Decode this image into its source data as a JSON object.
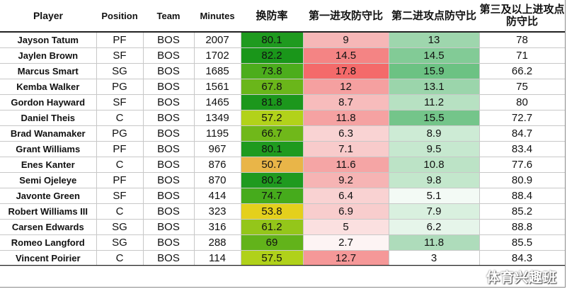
{
  "headers": {
    "player": "Player",
    "position": "Position",
    "team": "Team",
    "minutes": "Minutes",
    "switch_rate": "换防率",
    "first_attack_ratio": "第一进攻防守比",
    "second_attack_ratio": "第二进攻点防守比",
    "third_attack_ratio": "第三及以上进攻点防守比"
  },
  "rows": [
    {
      "player": "Jayson Tatum",
      "position": "PF",
      "team": "BOS",
      "minutes": "2007",
      "switch_rate": "80.1",
      "first": "9",
      "second": "13",
      "third": "78",
      "colors": {
        "switch": "#1f9a1f",
        "first": "#f6b7b7",
        "second": "#9ed6ad"
      }
    },
    {
      "player": "Jaylen Brown",
      "position": "SF",
      "team": "BOS",
      "minutes": "1702",
      "switch_rate": "82.2",
      "first": "14.5",
      "second": "14.5",
      "third": "71",
      "colors": {
        "switch": "#1a961a",
        "first": "#f48484",
        "second": "#82cb96"
      }
    },
    {
      "player": "Marcus Smart",
      "position": "SG",
      "team": "BOS",
      "minutes": "1685",
      "switch_rate": "73.8",
      "first": "17.8",
      "second": "15.9",
      "third": "66.2",
      "colors": {
        "switch": "#4cad1c",
        "first": "#f46a6a",
        "second": "#6cc283"
      }
    },
    {
      "player": "Kemba Walker",
      "position": "PG",
      "team": "BOS",
      "minutes": "1561",
      "switch_rate": "67.8",
      "first": "12",
      "second": "13.1",
      "third": "75",
      "colors": {
        "switch": "#6ab61a",
        "first": "#f5a0a0",
        "second": "#9bd5ab"
      }
    },
    {
      "player": "Gordon Hayward",
      "position": "SF",
      "team": "BOS",
      "minutes": "1465",
      "switch_rate": "81.8",
      "first": "8.7",
      "second": "11.2",
      "third": "80",
      "colors": {
        "switch": "#1c971c",
        "first": "#f7bcbc",
        "second": "#b7e1c2"
      }
    },
    {
      "player": "Daniel Theis",
      "position": "C",
      "team": "BOS",
      "minutes": "1349",
      "switch_rate": "57.2",
      "first": "11.8",
      "second": "15.5",
      "third": "72.7",
      "colors": {
        "switch": "#b2d21a",
        "first": "#f5a2a2",
        "second": "#74c58a"
      }
    },
    {
      "player": "Brad Wanamaker",
      "position": "PG",
      "team": "BOS",
      "minutes": "1195",
      "switch_rate": "66.7",
      "first": "6.3",
      "second": "8.9",
      "third": "84.7",
      "colors": {
        "switch": "#70b81a",
        "first": "#f9d3d3",
        "second": "#cdebd5"
      }
    },
    {
      "player": "Grant Williams",
      "position": "PF",
      "team": "BOS",
      "minutes": "967",
      "switch_rate": "80.1",
      "first": "7.1",
      "second": "9.5",
      "third": "83.4",
      "colors": {
        "switch": "#1f9a1f",
        "first": "#f8cbcb",
        "second": "#c6e8cf"
      }
    },
    {
      "player": "Enes Kanter",
      "position": "C",
      "team": "BOS",
      "minutes": "876",
      "switch_rate": "50.7",
      "first": "11.6",
      "second": "10.8",
      "third": "77.6",
      "colors": {
        "switch": "#e9b548",
        "first": "#f5a5a5",
        "second": "#bce3c6"
      }
    },
    {
      "player": "Semi Ojeleye",
      "position": "PF",
      "team": "BOS",
      "minutes": "870",
      "switch_rate": "80.2",
      "first": "9.2",
      "second": "9.8",
      "third": "80.9",
      "colors": {
        "switch": "#1f9a1f",
        "first": "#f6b4b4",
        "second": "#c3e7cc"
      }
    },
    {
      "player": "Javonte Green",
      "position": "SF",
      "team": "BOS",
      "minutes": "414",
      "switch_rate": "74.7",
      "first": "6.4",
      "second": "5.1",
      "third": "88.4",
      "colors": {
        "switch": "#46ab1c",
        "first": "#f9d2d2",
        "second": "#f3faf5"
      }
    },
    {
      "player": "Robert Williams III",
      "position": "C",
      "team": "BOS",
      "minutes": "323",
      "switch_rate": "53.8",
      "first": "6.9",
      "second": "7.9",
      "third": "85.2",
      "colors": {
        "switch": "#e4d01c",
        "first": "#f8cdcd",
        "second": "#d9f0df"
      }
    },
    {
      "player": "Carsen Edwards",
      "position": "SG",
      "team": "BOS",
      "minutes": "316",
      "switch_rate": "61.2",
      "first": "5",
      "second": "6.2",
      "third": "88.8",
      "colors": {
        "switch": "#94c61a",
        "first": "#fbe0e0",
        "second": "#e6f5ea"
      }
    },
    {
      "player": "Romeo Langford",
      "position": "SG",
      "team": "BOS",
      "minutes": "288",
      "switch_rate": "69",
      "first": "2.7",
      "second": "11.8",
      "third": "85.5",
      "colors": {
        "switch": "#62b31a",
        "first": "#fdf4f4",
        "second": "#aedcbb"
      }
    },
    {
      "player": "Vincent Poirier",
      "position": "C",
      "team": "BOS",
      "minutes": "114",
      "switch_rate": "57.5",
      "first": "12.7",
      "second": "3",
      "third": "84.3",
      "colors": {
        "switch": "#b0d11a",
        "first": "#f59898",
        "second": "#ffffff"
      }
    }
  ],
  "watermark": "体育兴趣班"
}
